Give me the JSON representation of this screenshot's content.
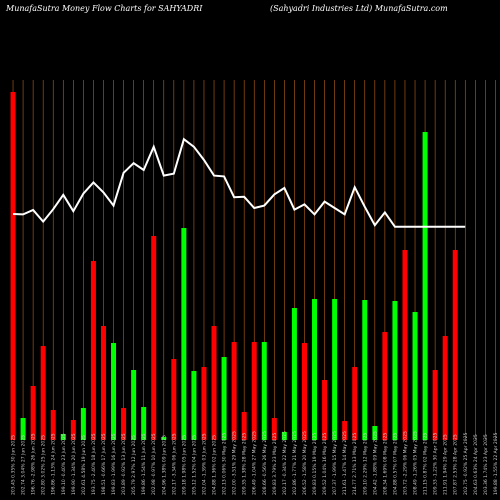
{
  "header": {
    "left_title": "MunafaSutra  Money Flow  Charts for SAHYADRI",
    "right_title": "(Sahyadri    Industries Ltd) MunafaSutra.com"
  },
  "colors": {
    "background": "#000000",
    "up_bar": "#00ff00",
    "down_bar": "#ff0000",
    "grid_line": "#b8621b",
    "price_line": "#ffffff"
  },
  "chart_data": {
    "type": "bar",
    "title": "MunafaSutra  Money Flow  Charts for SAHYADRI",
    "subtitle": "(Sahyadri    Industries Ltd) MunafaSutra.com",
    "categories": [
      "203.45 0.35% 30 Jun 2025",
      "202.74 3.04% 27 Jun 2025",
      "196.76 -2.98% 26 Jun 2025",
      "202.80 3.02% 25 Jun 2025",
      "196.86 -1.13% 24 Jun 2025",
      "199.10 -0.40% 23 Jun 2025",
      "199.90 -1.34% 20 Jun 2025",
      "202.61 4.58% 19 Jun 2025",
      "193.75 -2.40% 18 Jun 2025",
      "198.51 -0.66% 17 Jun 2025",
      "199.83 -1.99% 16 Jun 2025",
      "203.89 -0.92% 13 Jun 2025",
      "205.79 2.97% 12 Jun 2025",
      "199.86 -1.54% 11 Jun 2025",
      "202.98 -0.97% 10 Jun 2025",
      "204.96 1.38% 09 Jun 2025",
      "202.17 -3.34% 06 Jun 2025",
      "209.18 1.98% 05 Jun 2025",
      "205.12 1.52% 04 Jun 2025",
      "202.04 -1.39% 03 Jun 2025",
      "204.88 1.36% 02 Jun 2025",
      "202.13 0.06% 30 May 2025",
      "202.00 -3.51% 29 May 2025",
      "209.35 1.38% 28 May 2025",
      "206.49 -1.04% 27 May 2025",
      "208.66 -0.56% 26 May 2025",
      "209.83 3.79% 23 May 2025",
      "202.17 -0.34% 22 May 2025",
      "202.86 -1.77% 21 May 2025",
      "206.52 -1.58% 20 May 2025",
      "209.83 0.15% 19 May 2025",
      "209.52 1.04% 16 May 2025",
      "207.37 -1.99% 15 May 2025",
      "211.61 -1.47% 14 May 2025",
      "214.77 2.71% 13 May 2025",
      "209.10 2.29% 12 May 2025",
      "204.42 -1.88% 09 May 2025",
      "208.34 1.69% 08 May 2025",
      "204.88 0.57% 07 May 2025",
      "203.72 -2.29% 06 May 2025",
      "208.49 -1.26% 05 May 2025",
      "211.15 0.87% 02 May 2025",
      "209.33 -1.22% 30 Apr 2025",
      "211.91 1.94% 29 Apr 2025",
      "207.87 2.53% 28 Apr 2025",
      "202.75 -0.92% 25 Apr 2025",
      "204.63 0.63% 24 Apr 2025",
      "203.36 1.74% 23 Apr 2025",
      "199.88 -1.55% 22 Apr 2025"
    ],
    "directions": [
      "down",
      "up",
      "down",
      "down",
      "down",
      "up",
      "down",
      "up",
      "down",
      "down",
      "up",
      "down",
      "up",
      "up",
      "down",
      "up",
      "down",
      "up",
      "up",
      "down",
      "down",
      "up",
      "down",
      "down",
      "down",
      "up",
      "down",
      "up",
      "up",
      "down",
      "up",
      "down",
      "up",
      "down",
      "down",
      "up",
      "up",
      "down",
      "up",
      "down",
      "up",
      "up",
      "down",
      "down",
      "down",
      "up",
      "down",
      "down",
      "up"
    ],
    "flow_values": [
      348,
      22,
      54,
      94,
      30,
      6,
      20,
      32,
      179,
      114,
      97,
      32,
      70,
      33,
      204,
      3,
      81,
      212,
      69,
      73,
      114,
      83,
      98,
      28,
      98,
      98,
      22,
      8,
      132,
      97,
      141,
      60,
      141,
      19,
      73,
      140,
      14,
      108,
      139,
      190,
      128,
      308,
      70,
      104,
      190,
      0,
      0,
      0,
      0
    ],
    "price_values": [
      206.5,
      206.4,
      207.5,
      204.6,
      207.7,
      211.3,
      207.2,
      211.6,
      214.4,
      211.9,
      208.6,
      216.8,
      219.2,
      217.5,
      223.3,
      216.1,
      216.6,
      225.2,
      223.3,
      220.0,
      216.1,
      215.9,
      210.7,
      210.8,
      208.0,
      208.6,
      211.4,
      213.0,
      207.6,
      208.9,
      206.4,
      209.6,
      208.0,
      206.4,
      213.2,
      208.3,
      203.7,
      206.9,
      203.3,
      203.3,
      203.3,
      203.3,
      203.3,
      203.3,
      203.3,
      203.3,
      203.3,
      203.3,
      203.3
    ],
    "ylim": [
      0,
      350
    ],
    "price_ylim": [
      150,
      260
    ],
    "grid": true
  }
}
